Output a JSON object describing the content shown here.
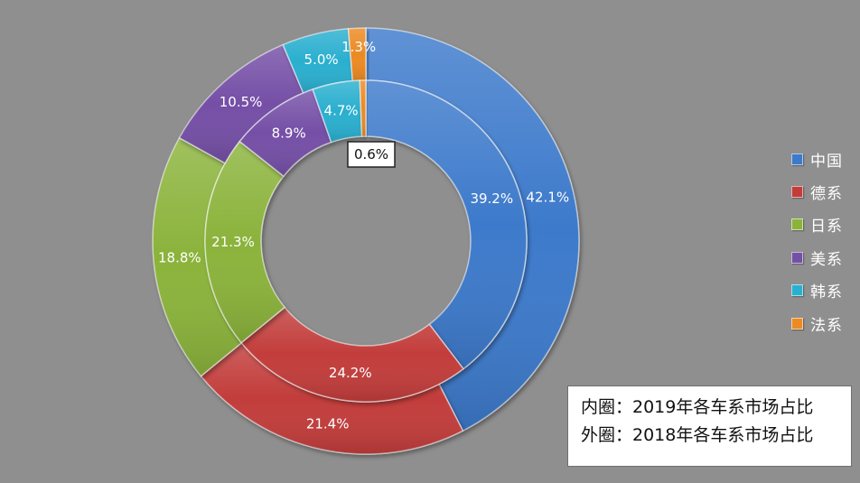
{
  "chart_data": {
    "type": "pie",
    "categories": [
      "中国",
      "德系",
      "日系",
      "美系",
      "韩系",
      "法系"
    ],
    "colors": [
      "#3d7acb",
      "#c23c3a",
      "#8bb33a",
      "#7450a6",
      "#29afcf",
      "#ec8a24"
    ],
    "series": [
      {
        "ring": "outer",
        "values": [
          42.1,
          21.4,
          18.8,
          10.5,
          5.0,
          1.3
        ],
        "labels": [
          "42.1%",
          "21.4%",
          "18.8%",
          "10.5%",
          "5.0%",
          "1.3%"
        ]
      },
      {
        "ring": "inner",
        "values": [
          39.2,
          24.2,
          21.3,
          8.9,
          4.7,
          0.6
        ],
        "labels": [
          "39.2%",
          "24.2%",
          "21.3%",
          "8.9%",
          "4.7%",
          "0.6%"
        ]
      }
    ],
    "legend_position": "right"
  },
  "legend": {
    "items": [
      {
        "label": "中国",
        "color": "#3d7acb"
      },
      {
        "label": "德系",
        "color": "#c23c3a"
      },
      {
        "label": "日系",
        "color": "#8bb33a"
      },
      {
        "label": "美系",
        "color": "#7450a6"
      },
      {
        "label": "韩系",
        "color": "#29afcf"
      },
      {
        "label": "法系",
        "color": "#ec8a24"
      }
    ]
  },
  "note": {
    "inner": "内圈：2019年各车系市场占比",
    "outer": "外圈：2018年各车系市场占比"
  }
}
